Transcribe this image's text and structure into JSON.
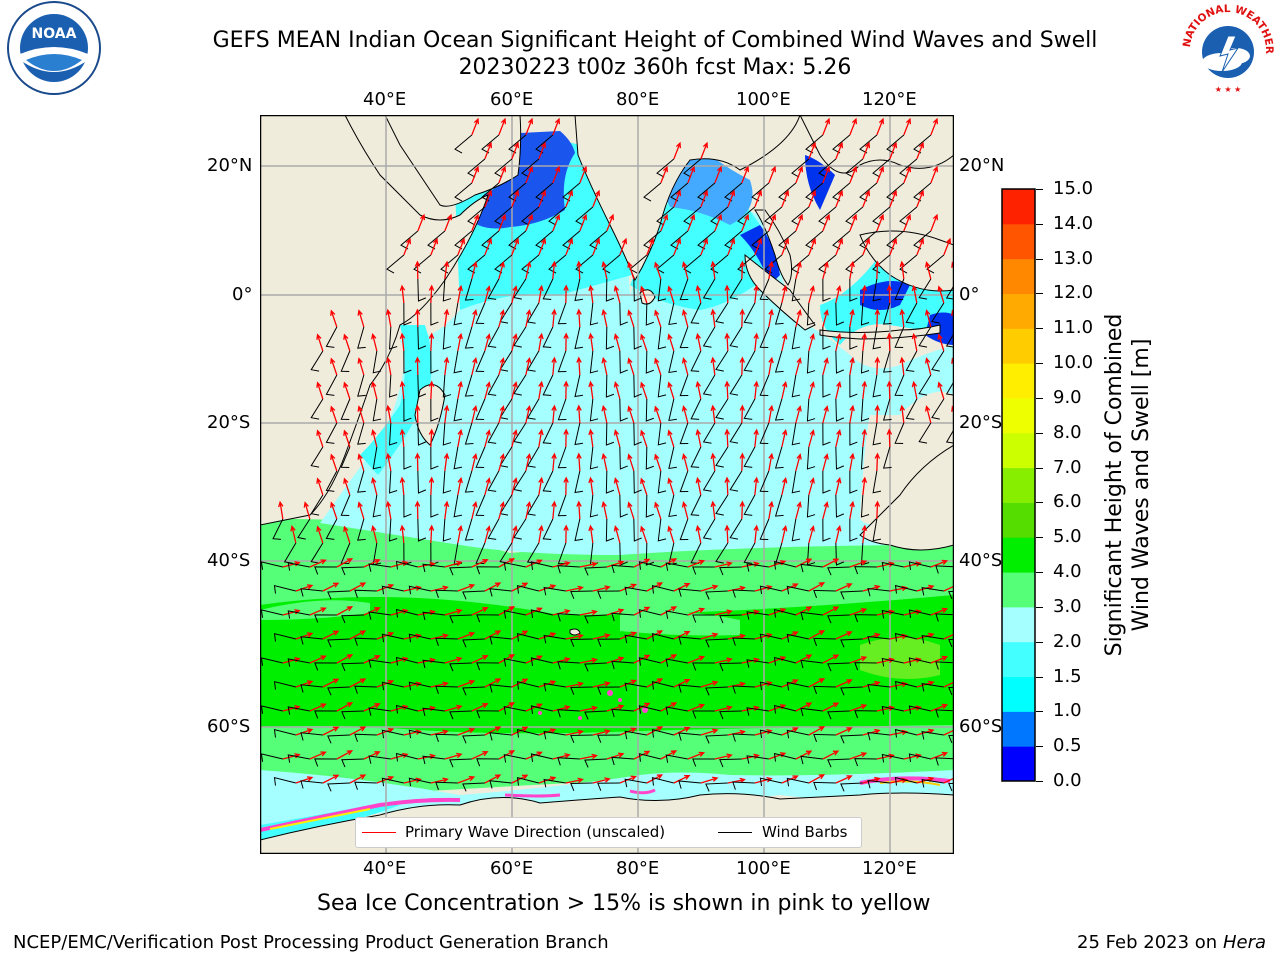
{
  "header": {
    "title_line1": "GEFS MEAN Indian Ocean Significant Height of Combined Wind Waves and Swell",
    "title_line2": "20230223 t00z 360h fcst   Max: 5.26"
  },
  "logos": {
    "left": {
      "name": "noaa-logo",
      "text": "NOAA"
    },
    "right": {
      "name": "nws-logo",
      "text": "NATIONAL WEATHER SERVICE"
    }
  },
  "map": {
    "lon_ticks_top": [
      "40°E",
      "60°E",
      "80°E",
      "100°E",
      "120°E"
    ],
    "lon_ticks_bottom": [
      "40°E",
      "60°E",
      "80°E",
      "100°E",
      "120°E"
    ],
    "lat_ticks_left": [
      "20°N",
      "0°",
      "20°S",
      "40°S",
      "60°S"
    ],
    "lat_ticks_right": [
      "20°N",
      "0°",
      "20°S",
      "40°S",
      "60°S"
    ],
    "legend": {
      "wave_label": "Primary Wave Direction (unscaled)",
      "wind_label": "Wind Barbs",
      "wave_color": "#ff0000",
      "wind_color": "#000000"
    },
    "land_color": "#efecdc"
  },
  "colorbar": {
    "title_line1": "Significant Height of Combined",
    "title_line2": "Wind Waves and Swell [m]",
    "ticks": [
      "0.0",
      "0.5",
      "1.0",
      "1.5",
      "2.0",
      "3.0",
      "4.0",
      "5.0",
      "6.0",
      "7.0",
      "8.0",
      "9.0",
      "10.0",
      "11.0",
      "12.0",
      "13.0",
      "14.0",
      "15.0"
    ],
    "colors": [
      "#0000ff",
      "#0077ff",
      "#00ffff",
      "#44ffff",
      "#a6ffff",
      "#55ff77",
      "#00ee00",
      "#55dd00",
      "#88ee00",
      "#ccff00",
      "#eeff00",
      "#ffee00",
      "#ffcc00",
      "#ffaa00",
      "#ff8800",
      "#ff5500",
      "#ff2200"
    ]
  },
  "footer": {
    "caption": "Sea Ice Concentration > 15% is shown in pink to yellow",
    "left": "NCEP/EMC/Verification Post Processing Product Generation Branch",
    "right_date": "25 Feb 2023 on",
    "right_host": "Hera"
  }
}
